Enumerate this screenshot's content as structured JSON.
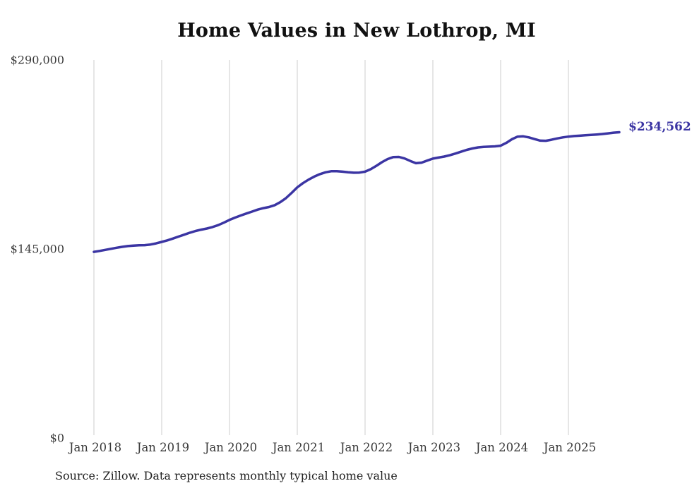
{
  "title": "Home Values in New Lothrop, MI",
  "source": "Source: Zillow. Data represents monthly typical home value",
  "colors": {
    "line": "#3b35a3",
    "end_label": "#3b35a3",
    "grid": "#cccccc",
    "axis_text": "#3a3a3a",
    "title_text": "#111111"
  },
  "chart_data": {
    "type": "line",
    "title": "Home Values in New Lothrop, MI",
    "ylabel": "",
    "xlabel": "",
    "ylim": [
      0,
      290000
    ],
    "y_ticks": [
      0,
      145000,
      290000
    ],
    "y_tick_labels": [
      "$0",
      "$145,000",
      "$290,000"
    ],
    "x_tick_labels": [
      "Jan 2018",
      "Jan 2019",
      "Jan 2020",
      "Jan 2021",
      "Jan 2022",
      "Jan 2023",
      "Jan 2024",
      "Jan 2025"
    ],
    "x_unit": "month",
    "x_start": "Jan 2018",
    "x_end": "Oct 2025",
    "grid": "vertical-only",
    "legend": "none",
    "last_value": 234562,
    "last_value_label": "$234,562",
    "series": [
      {
        "name": "Typical home value",
        "values": [
          142800,
          143500,
          144300,
          145100,
          145900,
          146600,
          147200,
          147600,
          147800,
          147900,
          148400,
          149300,
          150400,
          151600,
          153000,
          154500,
          156000,
          157500,
          158800,
          159800,
          160700,
          161800,
          163300,
          165200,
          167300,
          169100,
          170700,
          172200,
          173700,
          175200,
          176300,
          177200,
          178600,
          180900,
          184000,
          188000,
          192300,
          195500,
          198200,
          200500,
          202400,
          203800,
          204600,
          204700,
          204300,
          203800,
          203500,
          203600,
          204300,
          206200,
          208800,
          211600,
          214000,
          215500,
          215600,
          214400,
          212500,
          210800,
          211200,
          212800,
          214300,
          215100,
          215900,
          216900,
          218200,
          219600,
          221000,
          222100,
          222900,
          223300,
          223500,
          223700,
          224200,
          226400,
          229200,
          231200,
          231400,
          230600,
          229300,
          228100,
          228000,
          228800,
          229800,
          230600,
          231200,
          231600,
          231900,
          232200,
          232500,
          232800,
          233200,
          233700,
          234200,
          234562
        ]
      }
    ]
  }
}
